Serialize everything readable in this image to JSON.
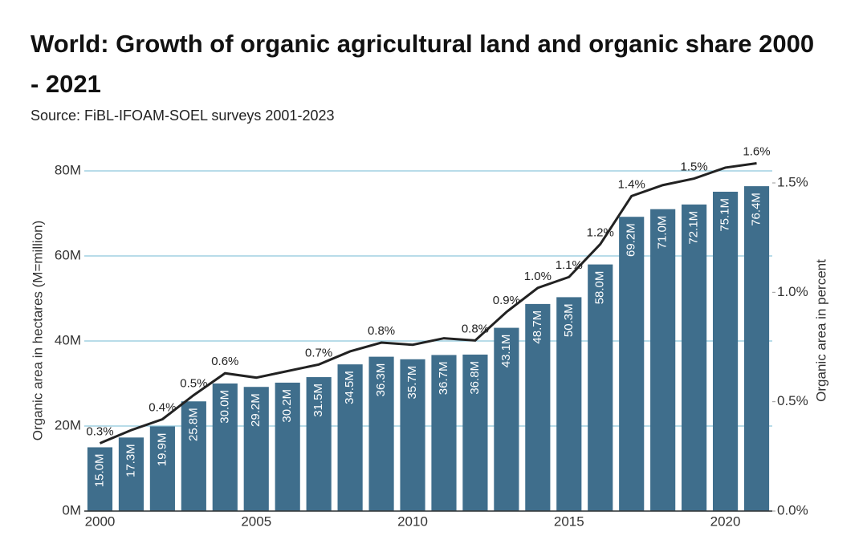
{
  "chart_data": {
    "type": "bar",
    "title": "World: Growth of organic agricultural land and organic share 2000 - 2021",
    "subtitle": "Source: FiBL-IFOAM-SOEL surveys 2001-2023",
    "y_label": "Organic area in hectares (M=million)",
    "y2_label": "Organic area in percent",
    "x": [
      2000,
      2001,
      2002,
      2003,
      2004,
      2005,
      2006,
      2007,
      2008,
      2009,
      2010,
      2011,
      2012,
      2013,
      2014,
      2015,
      2016,
      2017,
      2018,
      2019,
      2020,
      2021
    ],
    "xlim": [
      1999.5,
      2021.5
    ],
    "xticks": [
      2000,
      2005,
      2010,
      2015,
      2020
    ],
    "ylim": [
      0,
      80
    ],
    "yticks": [
      {
        "value": 0,
        "label": "0M"
      },
      {
        "value": 20,
        "label": "20M"
      },
      {
        "value": 40,
        "label": "40M"
      },
      {
        "value": 60,
        "label": "60M"
      },
      {
        "value": 80,
        "label": "80M"
      }
    ],
    "y2lim": [
      0,
      1.555
    ],
    "y2ticks": [
      {
        "value": 0,
        "label": "0.0%"
      },
      {
        "value": 0.5,
        "label": "0.5%"
      },
      {
        "value": 1,
        "label": "1.0%"
      },
      {
        "value": 1.5,
        "label": "1.5%"
      }
    ],
    "grid": true,
    "series": [
      {
        "type": "bar",
        "color": "#3f6e8c",
        "values": [
          15.0,
          17.3,
          19.9,
          25.8,
          30.0,
          29.2,
          30.2,
          31.5,
          34.5,
          36.3,
          35.7,
          36.7,
          36.8,
          43.1,
          48.7,
          50.3,
          58.0,
          69.2,
          71.0,
          72.1,
          75.1,
          76.4
        ],
        "value_labels": [
          "15.0M",
          "17.3M",
          "19.9M",
          "25.8M",
          "30.0M",
          "29.2M",
          "30.2M",
          "31.5M",
          "34.5M",
          "36.3M",
          "35.7M",
          "36.7M",
          "36.8M",
          "43.1M",
          "48.7M",
          "50.3M",
          "58.0M",
          "69.2M",
          "71.0M",
          "72.1M",
          "75.1M",
          "76.4M"
        ]
      },
      {
        "type": "line",
        "axis": "y2",
        "color": "#222222",
        "values": [
          0.31,
          0.37,
          0.42,
          0.53,
          0.63,
          0.61,
          0.64,
          0.67,
          0.73,
          0.77,
          0.76,
          0.79,
          0.78,
          0.91,
          1.02,
          1.07,
          1.22,
          1.44,
          1.49,
          1.52,
          1.57,
          1.59
        ],
        "value_labels": [
          "0.3%",
          null,
          "0.4%",
          "0.5%",
          "0.6%",
          null,
          null,
          "0.7%",
          null,
          "0.8%",
          null,
          null,
          "0.8%",
          "0.9%",
          "1.0%",
          "1.1%",
          "1.2%",
          "1.4%",
          null,
          "1.5%",
          null,
          "1.6%"
        ]
      }
    ]
  }
}
